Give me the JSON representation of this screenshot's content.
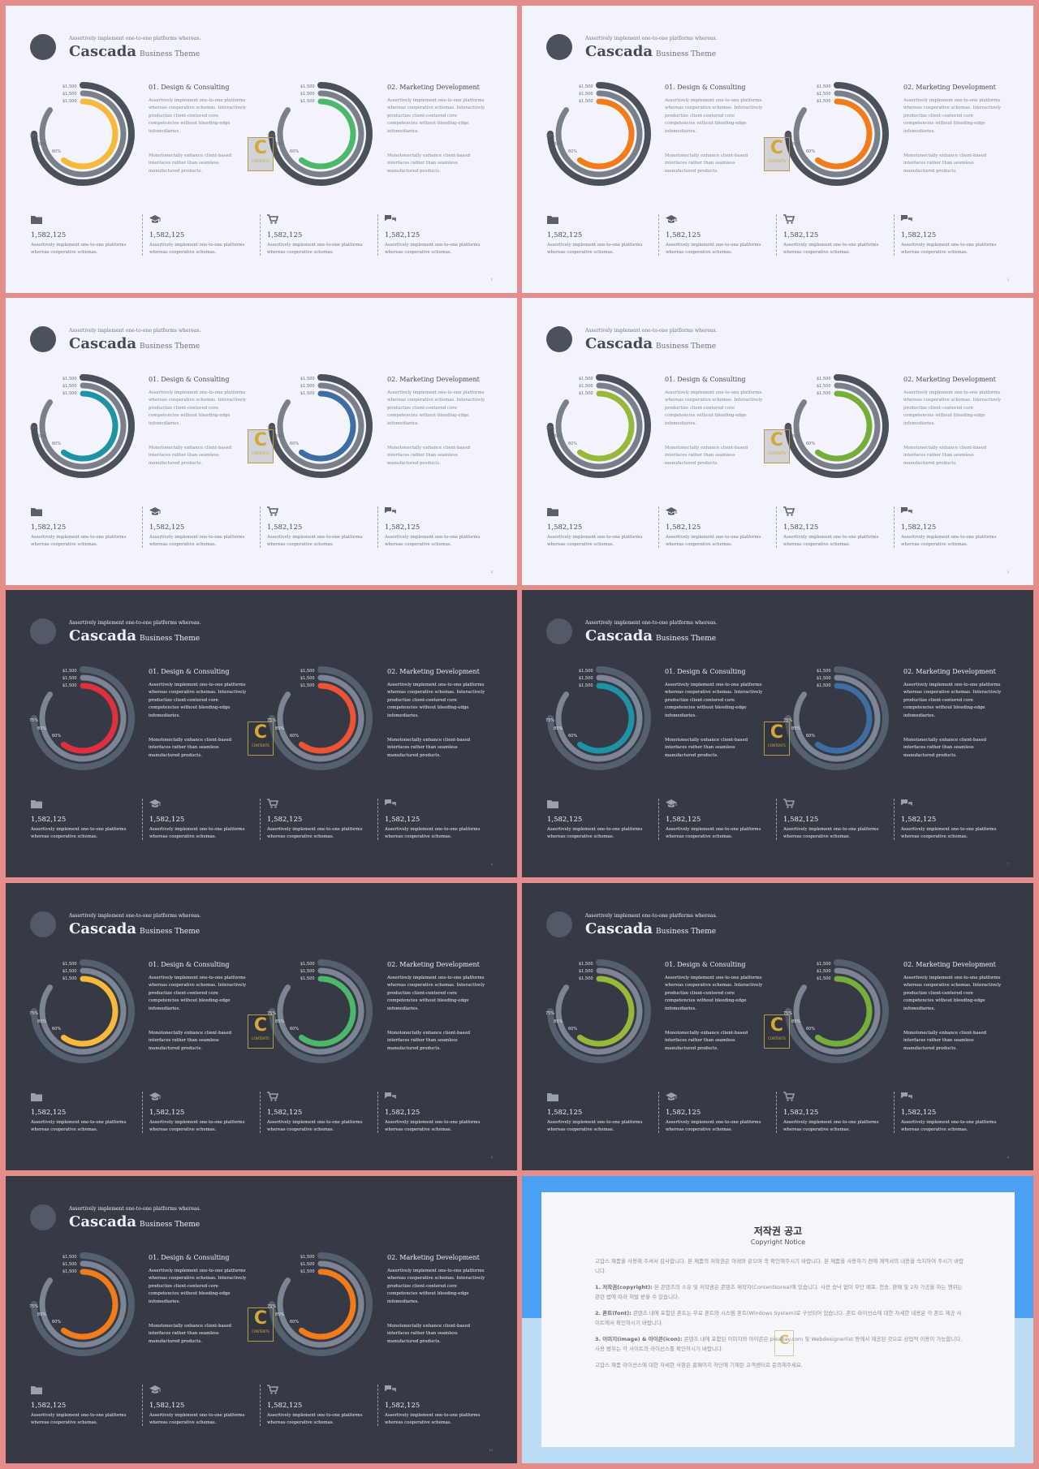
{
  "slide_template": {
    "tagline": "Assertively implement one-to-one platforms whereas.",
    "title": "Cascada",
    "subtitle": "Business Theme",
    "donut_labels": {
      "outer": "$1,500",
      "middle": "$1,500",
      "inner": "$1,500",
      "pct_outer": "75%",
      "pct_middle": "85%",
      "pct_inner": "60%"
    },
    "donut_data": {
      "outer_pct": 75,
      "middle_pct": 85,
      "inner_pct": 60
    },
    "logo": {
      "letter": "C",
      "text": "CONTENTS"
    },
    "sections": [
      {
        "heading": "01. Design & Consulting",
        "p1": "Assertively implement one-to-one platforms whereas cooperative schemas. Interactively productize client-centered core competencies without bleeding-edge infomediaries.",
        "p2": "Monotonectally enhance client-based interfaces rather than seamless manufactured products."
      },
      {
        "heading": "02. Marketing Development",
        "p1": "Assertively implement one-to-one platforms whereas cooperative schemas. Interactively productize client-centered core competencies without bleeding-edge infomediaries.",
        "p2": "Monotonectally enhance client-based interfaces rather than seamless manufactured products."
      }
    ],
    "stats": [
      {
        "icon": "folder-icon",
        "value": "1,582,125",
        "text": "Assertively implement one-to-one platforms whereas cooperative schemas."
      },
      {
        "icon": "graduation-cap-icon",
        "value": "1,582,125",
        "text": "Assertively implement one-to-one platforms whereas cooperative schemas."
      },
      {
        "icon": "cart-icon",
        "value": "1,582,125",
        "text": "Assertively implement one-to-one platforms whereas cooperative schemas."
      },
      {
        "icon": "chat-icon",
        "value": "1,582,125",
        "text": "Assertively implement one-to-one platforms whereas cooperative schemas."
      }
    ]
  },
  "slides": [
    {
      "theme": "light",
      "page": "1",
      "accent1": "#f6b93b",
      "accent2": "#4cb86a"
    },
    {
      "theme": "light",
      "page": "2",
      "accent1": "#f27b1a",
      "accent2": "#f27b1a"
    },
    {
      "theme": "light",
      "page": "4",
      "accent1": "#1e93a6",
      "accent2": "#3d6ea3"
    },
    {
      "theme": "light",
      "page": "3",
      "accent1": "#96b93a",
      "accent2": "#76ae3a"
    },
    {
      "theme": "dark",
      "page": "6",
      "accent1": "#e0303e",
      "accent2": "#ef5336"
    },
    {
      "theme": "dark",
      "page": "7",
      "accent1": "#1e93a6",
      "accent2": "#3d6ea3"
    },
    {
      "theme": "dark",
      "page": "5",
      "accent1": "#f6b93b",
      "accent2": "#4cb86a"
    },
    {
      "theme": "dark",
      "page": "8",
      "accent1": "#96b93a",
      "accent2": "#76ae3a"
    },
    {
      "theme": "dark",
      "page": "10",
      "accent1": "#f27b1a",
      "accent2": "#f27b1a"
    }
  ],
  "notice": {
    "title": "저작권 공고",
    "subtitle": "Copyright Notice",
    "intro": "고맙스 제품을 사용해 주셔서 감사합니다. 본 제품의 저작권은 아래와 같으며 꼭 확인해주시기 바랍니다. 본 제품을 사용하기 전에 계약서의 내용을 숙지하여 주시기 바랍니다.",
    "p1_head": "1. 저작권(copyright):",
    "p1": "본 콘텐츠의 소유 및 저작권은 콘텐츠 제작자(Contentkorea)에 있습니다. 사전 승낙 없이 무단 배포, 전송, 판매 및 2차 가공을 하는 행위는 관련 법에 따라 처벌 받을 수 있습니다.",
    "p2_head": "2. 폰트(font):",
    "p2": "콘텐츠 내에 포함된 폰트는 무료 폰트와 시스템 폰트(Windows System)로 구성되어 있습니다. 폰트 라이선스에 대한 자세한 내용은 각 폰트 제공 사이트에서 확인하시기 바랍니다.",
    "p3_head": "3. 이미지(image) & 아이콘(icon):",
    "p3": "콘텐츠 내에 포함된 이미지와 아이콘은 pixabay.com 및 Webdesignerlist 등에서 제공된 것으로 상업적 이용이 가능합니다. 사용 범위는 각 사이트의 라이선스를 확인하시기 바랍니다.",
    "outro": "고맙스 제품 라이선스에 대한 자세한 사항은 홈페이지 하단에 기재된 고객센터로 문의해주세요."
  }
}
